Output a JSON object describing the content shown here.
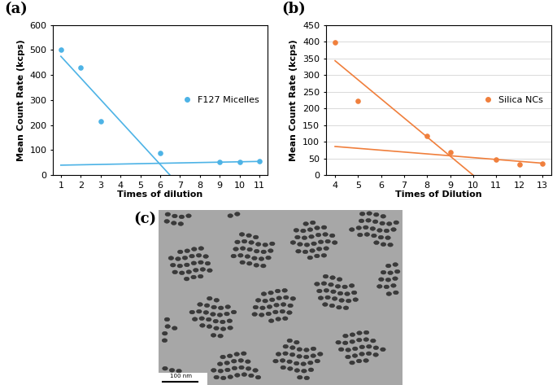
{
  "chart_data": [
    {
      "type": "scatter",
      "panel": "(a)",
      "x_label": "Times of dilution",
      "y_label": "Mean Count Rate (kcps)",
      "xlim": [
        0.6,
        11.4
      ],
      "xticks": [
        1,
        2,
        3,
        4,
        5,
        6,
        7,
        8,
        9,
        10,
        11
      ],
      "ylim": [
        0,
        600
      ],
      "yticks": [
        0,
        100,
        200,
        300,
        400,
        500,
        600
      ],
      "grid": false,
      "legend": "center right",
      "series": [
        {
          "name": "F127 Micelles",
          "type": "scatter",
          "color": "#4db3e6",
          "marker": "o",
          "x": [
            1,
            2,
            3,
            6,
            9,
            10,
            11
          ],
          "values": [
            500,
            430,
            215,
            90,
            52,
            52,
            55
          ]
        },
        {
          "type": "line",
          "color": "#4db3e6",
          "line_style": "solid",
          "x": [
            1,
            6.5
          ],
          "values": [
            475,
            0
          ]
        },
        {
          "type": "line",
          "color": "#4db3e6",
          "line_style": "solid",
          "x": [
            1,
            11
          ],
          "values": [
            40,
            55
          ]
        }
      ]
    },
    {
      "type": "scatter",
      "panel": "(b)",
      "x_label": "Times of Dilution",
      "y_label": "Mean Count Rate (kcps)",
      "xlim": [
        3.6,
        13.4
      ],
      "xticks": [
        4,
        5,
        6,
        7,
        8,
        9,
        10,
        11,
        12,
        13
      ],
      "ylim": [
        0,
        450
      ],
      "yticks": [
        0,
        50,
        100,
        150,
        200,
        250,
        300,
        350,
        400,
        450
      ],
      "grid": true,
      "legend": "center right",
      "series": [
        {
          "name": "Silica NCs",
          "type": "scatter",
          "color": "#f07f3c",
          "marker": "o",
          "x": [
            4,
            5,
            8,
            9,
            11,
            12,
            13
          ],
          "values": [
            397,
            222,
            118,
            70,
            47,
            33,
            35
          ]
        },
        {
          "type": "line",
          "color": "#f07f3c",
          "line_style": "solid",
          "x": [
            4,
            10
          ],
          "values": [
            343,
            0
          ]
        },
        {
          "type": "line",
          "color": "#f07f3c",
          "line_style": "solid",
          "x": [
            4,
            13
          ],
          "values": [
            86,
            36
          ]
        }
      ]
    }
  ],
  "image": {
    "panel": "(c)",
    "scale_bar": "100 nm"
  }
}
